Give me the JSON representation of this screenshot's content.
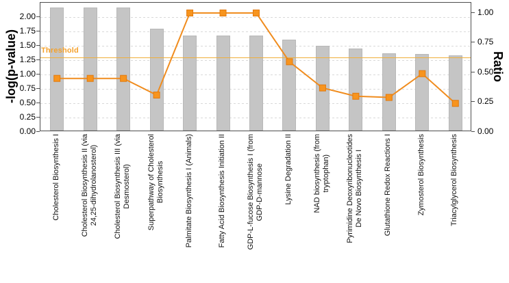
{
  "chart_data": {
    "type": "bar",
    "title": "",
    "categories": [
      "Cholesterol Biosynthesis I",
      "Cholesterol Biosynthesis II (via\n24,25-dihydrolanosterol)",
      "Cholesterol Biosynthesis III (via\nDesmosterol)",
      "Superpathway of Cholesterol\nBiosynthesis",
      "Palmitate Biosynthesis I (Animals)",
      "Fatty Acid Biosynthesis Initiation II",
      "GDP-L-fucose Biosynthesis I (from\nGDP-D-mannose",
      "Lysine Degradation II",
      "NAD biosynthesis (from\ntryptophan)",
      "Pyrimidine Deoxyribonucleotides\nDe Novo Biosynthesis I",
      "Glutathione Redox Reactions I",
      "Zymosterol Biosynthesis",
      "Triacylglycerol Biosynthesis"
    ],
    "series": [
      {
        "name": "-log(p-value)",
        "type": "bar",
        "axis": "left",
        "color": "#c5c5c5",
        "values": [
          2.14,
          2.14,
          2.14,
          1.77,
          1.66,
          1.66,
          1.66,
          1.58,
          1.48,
          1.43,
          1.35,
          1.33,
          1.31
        ]
      },
      {
        "name": "Ratio",
        "type": "line",
        "axis": "right",
        "color": "#f08c1e",
        "marker": "square",
        "marker_fill": "#f7941e",
        "marker_stroke": "#e2790d",
        "values": [
          0.45,
          0.45,
          0.45,
          0.31,
          1.0,
          1.0,
          1.0,
          0.59,
          0.37,
          0.3,
          0.29,
          0.49,
          0.24
        ]
      }
    ],
    "left_axis": {
      "label": "-log(p-value)",
      "tick_labels": [
        "0.00",
        "0.25",
        "0.50",
        "0.75",
        "1.00",
        "1.25",
        "1.50",
        "1.75",
        "2.00"
      ],
      "range": [
        0,
        2.25
      ]
    },
    "right_axis": {
      "label": "Ratio",
      "tick_labels": [
        "0.00",
        "0.25",
        "0.50",
        "0.75",
        "1.00"
      ],
      "range": [
        0,
        1.0862
      ]
    },
    "threshold": {
      "label": "Threshold",
      "value": 1.3,
      "axis": "left",
      "line_color": "#efae38",
      "label_color": "#f5a12b"
    },
    "grid": {
      "horizontal": true,
      "style": "dashed",
      "color": "#d8d8d8"
    }
  }
}
